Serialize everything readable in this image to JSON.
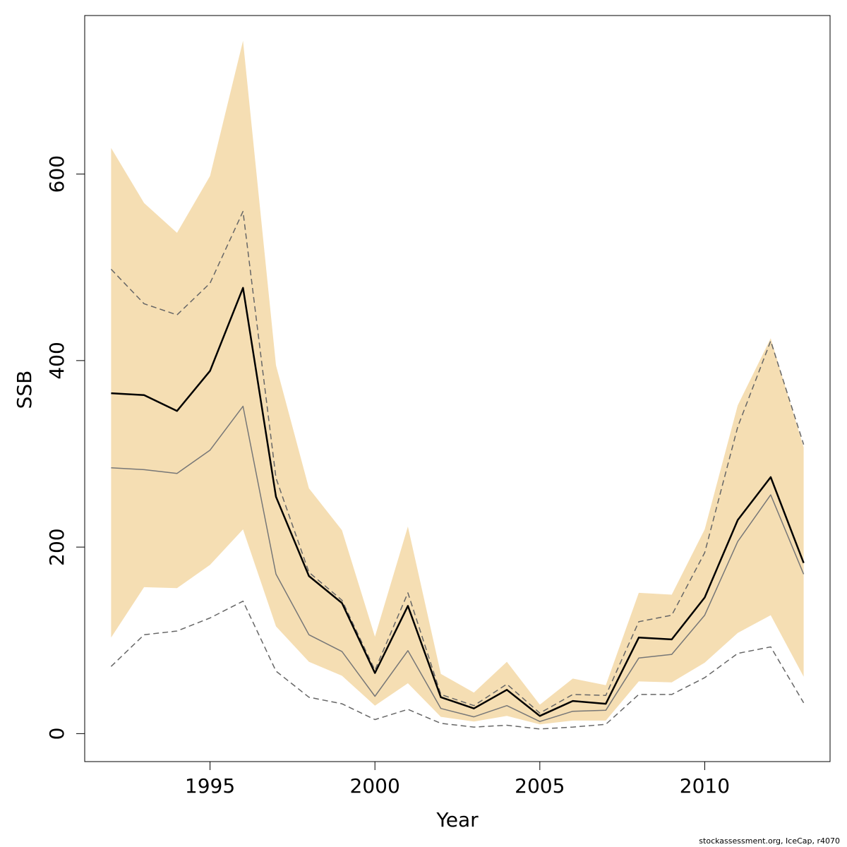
{
  "chart_data": {
    "type": "line",
    "title": "",
    "xlabel": "Year",
    "ylabel": "SSB",
    "xlim": [
      1991.2,
      2013.8
    ],
    "ylim": [
      -30,
      770
    ],
    "x_ticks": [
      1995,
      2000,
      2005,
      2010
    ],
    "y_ticks": [
      0,
      200,
      400,
      600
    ],
    "grid": false,
    "legend": "none",
    "x": [
      1992,
      1993,
      1994,
      1995,
      1996,
      1997,
      1998,
      1999,
      2000,
      2001,
      2002,
      2003,
      2004,
      2005,
      2006,
      2007,
      2008,
      2009,
      2010,
      2011,
      2012,
      2013
    ],
    "band": {
      "color": "#f5deb3",
      "lower": [
        103,
        157,
        156,
        181,
        219,
        115,
        77,
        62,
        30,
        54,
        18,
        13,
        19,
        10,
        14,
        14,
        56,
        55,
        76,
        108,
        127,
        61
      ],
      "upper": [
        628,
        569,
        537,
        598,
        743,
        395,
        263,
        218,
        104,
        222,
        64,
        44,
        77,
        31,
        59,
        52,
        151,
        149,
        219,
        352,
        424,
        307
      ]
    },
    "series": [
      {
        "role": "median",
        "color": "#000000",
        "style": "solid",
        "width": 2.5,
        "values": [
          365,
          363,
          346,
          389,
          478,
          254,
          169,
          140,
          65,
          137,
          39,
          27,
          47,
          19,
          35,
          32,
          103,
          101,
          146,
          229,
          275,
          183
        ]
      },
      {
        "role": "point",
        "color": "#777777",
        "style": "solid",
        "width": 1.5,
        "values": [
          285,
          283,
          279,
          304,
          351,
          171,
          106,
          88,
          40,
          89,
          27,
          18,
          30,
          13,
          24,
          25,
          81,
          85,
          127,
          206,
          256,
          171
        ]
      },
      {
        "role": "upper-dashed",
        "color": "#666666",
        "style": "dashed",
        "width": 1.5,
        "values": [
          498,
          461,
          449,
          483,
          560,
          274,
          173,
          143,
          68,
          151,
          42,
          30,
          53,
          22,
          42,
          41,
          120,
          127,
          194,
          329,
          421,
          310
        ]
      },
      {
        "role": "lower-dashed",
        "color": "#666666",
        "style": "dashed",
        "width": 1.5,
        "values": [
          72,
          106,
          110,
          124,
          142,
          67,
          39,
          32,
          15,
          26,
          11,
          7,
          9,
          5,
          7,
          10,
          42,
          42,
          60,
          86,
          93,
          33
        ]
      }
    ]
  },
  "credit": "stockassessment.org, IceCap, r4070"
}
